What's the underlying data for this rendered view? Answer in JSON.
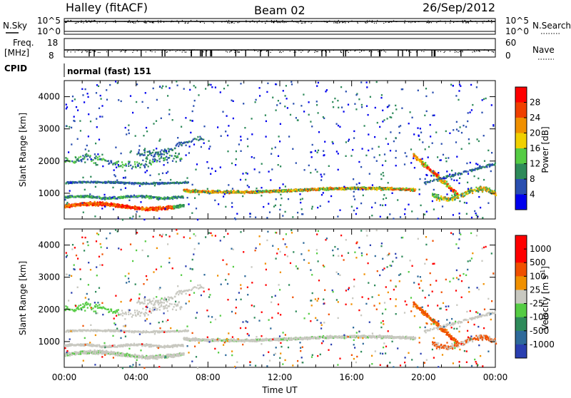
{
  "header": {
    "radar": "Halley (fitACF)",
    "beam": "Beam 02",
    "date": "26/Sep/2012"
  },
  "nsky_panel": {
    "left_label": "N.Sky",
    "right_label": "N.Search",
    "ticks": [
      "10^5",
      "10^0"
    ],
    "right_ticks": [
      "10^5",
      "10^0"
    ]
  },
  "freq_panel": {
    "left_label_1": "Freq.",
    "left_label_2": "[MHz]",
    "left_ticks": [
      "18",
      "8"
    ],
    "right_label": "Nave",
    "right_ticks": [
      "60",
      "0"
    ]
  },
  "cpid": {
    "label": "CPID",
    "value": "normal (fast) 151"
  },
  "chart_data": [
    {
      "type": "heatmap",
      "title": "",
      "ylabel": "Slant Range [km]",
      "xlabel": "",
      "x_range_hours": [
        0,
        24
      ],
      "ylim": [
        200,
        4500
      ],
      "yticks": [
        1000,
        2000,
        3000,
        4000
      ],
      "colorbar": {
        "label": "Power [dB]",
        "ticks": [
          4,
          8,
          12,
          16,
          20,
          24,
          28
        ],
        "colors": [
          "#0000ee",
          "#2a4fb0",
          "#2e8a5a",
          "#55cc44",
          "#f0d000",
          "#f09000",
          "#f04000",
          "#ff0000"
        ]
      }
    },
    {
      "type": "heatmap",
      "title": "",
      "ylabel": "Slant Range [km]",
      "xlabel": "Time UT",
      "x_range_hours": [
        0,
        24
      ],
      "xticks": [
        "00:00",
        "04:00",
        "08:00",
        "12:00",
        "16:00",
        "20:00",
        "00:00"
      ],
      "ylim": [
        200,
        4500
      ],
      "yticks": [
        1000,
        2000,
        3000,
        4000
      ],
      "colorbar": {
        "label": "Velocity [m s",
        "label_sup": "-1",
        "label_end": "]",
        "ticks": [
          "1000",
          "500",
          "100",
          "25",
          "-25",
          "-100",
          "-500",
          "-1000"
        ],
        "colors": [
          "#2a3fb0",
          "#2e6a9a",
          "#2e8a5a",
          "#55cc44",
          "#c8c8c0",
          "#f09000",
          "#f05000",
          "#ff0000",
          "#ff0000"
        ]
      }
    }
  ],
  "colors": {
    "power_scale": [
      "#0000ee",
      "#2a4fb0",
      "#2e8a5a",
      "#55cc44",
      "#f0d000",
      "#f09000",
      "#f04000",
      "#ff0000"
    ],
    "velocity_grey": "#c8c8c0"
  }
}
